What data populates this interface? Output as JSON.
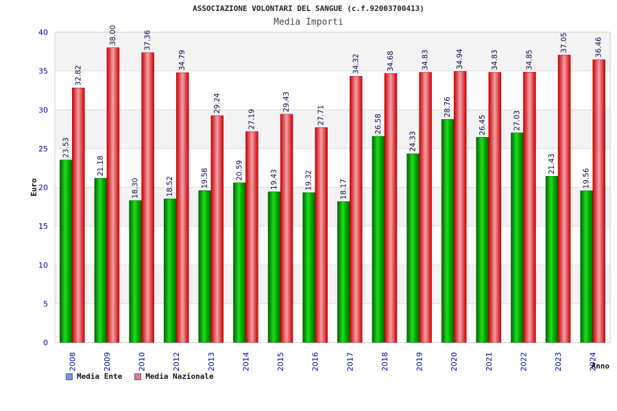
{
  "chart_data": {
    "type": "bar",
    "title": "ASSOCIAZIONE VOLONTARI DEL SANGUE (c.f.92003700413)",
    "subtitle": "Media Importi",
    "xlabel": "Anno",
    "ylabel": "Euro",
    "ylim": [
      0,
      40
    ],
    "yticks": [
      "0",
      "5",
      "10",
      "15",
      "20",
      "25",
      "30",
      "35",
      "40"
    ],
    "categories": [
      "2008",
      "2009",
      "2010",
      "2012",
      "2013",
      "2014",
      "2015",
      "2016",
      "2017",
      "2018",
      "2019",
      "2020",
      "2021",
      "2022",
      "2023",
      "2024"
    ],
    "series": [
      {
        "name": "Media Ente",
        "values": [
          23.53,
          21.18,
          18.3,
          18.52,
          19.58,
          20.59,
          19.43,
          19.32,
          18.17,
          26.58,
          24.33,
          28.76,
          26.45,
          27.03,
          21.43,
          19.56
        ],
        "labels": [
          "23.53",
          "21.18",
          "18.30",
          "18.52",
          "19.58",
          "20.59",
          "19.43",
          "19.32",
          "18.17",
          "26.58",
          "24.33",
          "28.76",
          "26.45",
          "27.03",
          "21.43",
          "19.56"
        ],
        "color": "#00b000"
      },
      {
        "name": "Media Nazionale",
        "values": [
          32.82,
          38.0,
          37.36,
          34.79,
          29.24,
          27.19,
          29.43,
          27.71,
          34.32,
          34.68,
          34.83,
          34.94,
          34.83,
          34.85,
          37.05,
          36.46
        ],
        "labels": [
          "32.82",
          "38.00",
          "37.36",
          "34.79",
          "29.24",
          "27.19",
          "29.43",
          "27.71",
          "34.32",
          "34.68",
          "34.83",
          "34.94",
          "34.83",
          "34.85",
          "37.05",
          "36.46"
        ],
        "color": "#e8000a"
      }
    ],
    "grid": true,
    "legend_position": "bottom-left",
    "legend": [
      {
        "label": "Media Ente",
        "swatch": "#6699ee"
      },
      {
        "label": "Media Nazionale",
        "swatch": "#dd77aa"
      }
    ]
  }
}
